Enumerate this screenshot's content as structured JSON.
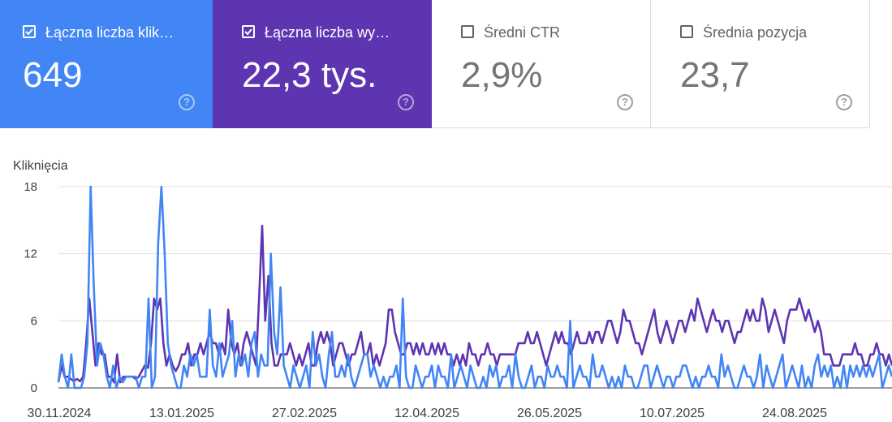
{
  "cards": [
    {
      "label": "Łączna liczba klik…",
      "value": "649",
      "checked": true,
      "bg": "#4285f4"
    },
    {
      "label": "Łączna liczba wy…",
      "value": "22,3 tys.",
      "checked": true,
      "bg": "#5e35b1"
    },
    {
      "label": "Średni CTR",
      "value": "2,9%",
      "checked": false
    },
    {
      "label": "Średnia pozycja",
      "value": "23,7",
      "checked": false
    }
  ],
  "help_glyph": "?",
  "chart_data": {
    "type": "line",
    "ylabel": "Kliknięcia",
    "ylim": [
      0,
      18
    ],
    "yticks": [
      0,
      6,
      12,
      18
    ],
    "xticks": [
      "30.11.2024",
      "13.01.2025",
      "27.02.2025",
      "12.04.2025",
      "26.05.2025",
      "10.07.2025",
      "24.08.2025"
    ],
    "x_start": "2024-11-30",
    "series": [
      {
        "color": "#5e35b1",
        "values": [
          0.5,
          2,
          1,
          1,
          0.8,
          0.6,
          0.8,
          0.6,
          1,
          4,
          8,
          5,
          2,
          4,
          3,
          3,
          1,
          1,
          0.5,
          3,
          0.5,
          1,
          1,
          1,
          1,
          0.8,
          1,
          1.5,
          2,
          1.8,
          4,
          8,
          7,
          8,
          4,
          2,
          3,
          2,
          1.5,
          2,
          3,
          3,
          4,
          2,
          3,
          3,
          4,
          3,
          4,
          5,
          4,
          4,
          3,
          4,
          3,
          7,
          4,
          3,
          4,
          2,
          4,
          5,
          4,
          3,
          2,
          8,
          14.5,
          6,
          10,
          4,
          2,
          2,
          3,
          3,
          3,
          4,
          3,
          2,
          3,
          2,
          3,
          4,
          2,
          2,
          4,
          5,
          4,
          5,
          4,
          2,
          3,
          4,
          4,
          3,
          2,
          3,
          3,
          4,
          5,
          3,
          3,
          4,
          2,
          3,
          2,
          3,
          4,
          7,
          7,
          5,
          4,
          3,
          3,
          4,
          4,
          3,
          4,
          3,
          4,
          3,
          3,
          4,
          3,
          4,
          3,
          4,
          3,
          3,
          2,
          3,
          2,
          3,
          2,
          4,
          3,
          3,
          2,
          3,
          3,
          4,
          3,
          3,
          2,
          3,
          3,
          3,
          3,
          3,
          3,
          4,
          4,
          4,
          5,
          4,
          4,
          5,
          4,
          3,
          2,
          3,
          4,
          5,
          4,
          5,
          4,
          4,
          3,
          4,
          5,
          4,
          4,
          4,
          5,
          4,
          5,
          5,
          4,
          5,
          6,
          6,
          5,
          4,
          5,
          7,
          6,
          6,
          5,
          4,
          4,
          3,
          4,
          5,
          6,
          7,
          5,
          4,
          5,
          6,
          5,
          4,
          5,
          6,
          6,
          5,
          6,
          7,
          6,
          8,
          7,
          6,
          5,
          6,
          7,
          6,
          6,
          5,
          6,
          6,
          5,
          4,
          5,
          5,
          6,
          7,
          6,
          7,
          6,
          6,
          8,
          7,
          5,
          6,
          7,
          6,
          5,
          4,
          6,
          7,
          7,
          7,
          8,
          7,
          6,
          7,
          6,
          5,
          6,
          5,
          3,
          3,
          3,
          2,
          2,
          2,
          3,
          3,
          3,
          3,
          4,
          3,
          3,
          2,
          2,
          3,
          3,
          4,
          3,
          3,
          2,
          3,
          2
        ]
      },
      {
        "color": "#4285f4",
        "values": [
          0.5,
          3,
          1,
          0,
          3,
          0,
          0,
          0,
          1,
          4,
          18,
          9,
          2,
          4,
          3,
          1,
          0,
          2,
          0,
          1,
          0.5,
          1,
          1,
          1,
          1,
          0,
          1,
          1,
          8,
          0,
          1,
          13,
          18,
          12,
          4,
          2,
          1,
          0,
          0,
          2,
          1,
          3,
          2,
          3,
          1,
          1,
          1,
          7,
          2,
          1,
          4,
          1,
          2,
          3,
          6,
          1,
          3,
          2,
          3,
          1,
          4,
          5,
          1,
          3,
          2,
          2,
          12,
          5,
          3,
          9,
          2,
          1,
          0,
          2,
          1,
          0,
          1,
          2,
          0,
          5,
          2,
          3,
          1,
          0,
          3,
          5,
          1,
          1,
          2,
          1,
          3,
          1,
          0,
          1,
          2,
          3,
          3,
          1,
          2,
          1,
          0,
          1,
          0,
          1,
          1,
          2,
          0,
          8,
          1,
          0,
          0,
          2,
          1,
          0,
          1,
          1,
          2,
          0,
          2,
          1,
          1,
          0,
          3,
          0,
          1,
          2,
          1,
          0,
          2,
          1,
          0,
          0,
          1,
          0,
          2,
          1,
          2,
          0,
          1,
          1,
          2,
          0,
          3,
          1,
          0,
          0,
          1,
          2,
          0,
          1,
          1,
          0,
          2,
          1,
          1,
          2,
          1,
          1,
          0,
          6,
          0,
          1,
          2,
          1,
          1,
          0,
          3,
          1,
          1,
          2,
          1,
          0,
          1,
          0,
          1,
          0,
          2,
          1,
          1,
          0,
          0,
          1,
          2,
          2,
          0,
          1,
          2,
          1,
          0,
          1,
          1,
          0,
          1,
          1,
          2,
          2,
          1,
          0,
          1,
          0,
          1,
          1,
          2,
          1,
          1,
          0,
          3,
          1,
          2,
          1,
          0,
          0,
          1,
          2,
          1,
          1,
          0,
          1,
          3,
          0,
          2,
          1,
          0,
          1,
          2,
          3,
          0,
          1,
          2,
          1,
          0,
          2,
          0,
          1,
          0,
          2,
          3,
          1,
          2,
          1,
          2,
          0,
          1,
          0,
          2,
          0,
          2,
          1,
          2,
          1,
          2,
          1,
          2,
          1,
          2,
          3,
          0,
          1,
          2,
          1
        ]
      }
    ]
  }
}
